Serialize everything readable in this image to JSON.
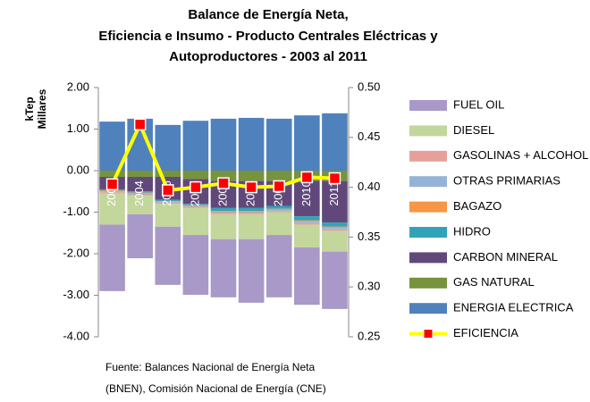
{
  "chart_data": {
    "type": "bar",
    "title": [
      "Balance de Energía Neta,",
      "Eficiencia e Insumo - Producto Centrales Eléctricas y",
      "Autoproductores - 2003 al 2011"
    ],
    "ylabel": [
      "kTep",
      "Millares"
    ],
    "source": [
      "Fuente: Balances Nacional de Energía Neta",
      "(BNEN), Comisión Nacional de Energía (CNE)"
    ],
    "categories": [
      "2003",
      "2004",
      "2005",
      "2006",
      "2007",
      "2008",
      "2009",
      "2010",
      "2011"
    ],
    "stacked": true,
    "series": [
      {
        "name": "FUEL OIL",
        "color": "#a899c8",
        "values": [
          -1.6,
          -1.06,
          -1.4,
          -1.44,
          -1.4,
          -1.53,
          -1.5,
          -1.38,
          -1.38
        ]
      },
      {
        "name": "DIESEL",
        "color": "#c3d69b",
        "values": [
          -0.75,
          -0.45,
          -0.55,
          -0.65,
          -0.6,
          -0.6,
          -0.55,
          -0.55,
          -0.5
        ]
      },
      {
        "name": "GASOLINAS + ALCOHOL",
        "color": "#e6a09b",
        "values": [
          -0.03,
          -0.03,
          -0.03,
          -0.03,
          -0.03,
          -0.03,
          -0.03,
          -0.04,
          -0.04
        ]
      },
      {
        "name": "OTRAS PRIMARIAS",
        "color": "#95b3d7",
        "values": [
          -0.02,
          -0.02,
          -0.02,
          -0.02,
          -0.02,
          -0.02,
          -0.02,
          -0.03,
          -0.03
        ]
      },
      {
        "name": "BAGAZO",
        "color": "#f79646",
        "values": [
          -0.02,
          -0.02,
          -0.02,
          -0.02,
          -0.03,
          -0.03,
          -0.03,
          -0.03,
          -0.03
        ]
      },
      {
        "name": "HIDRO",
        "color": "#31a3b8",
        "values": [
          -0.03,
          -0.03,
          -0.03,
          -0.03,
          -0.07,
          -0.07,
          -0.07,
          -0.1,
          -0.1
        ]
      },
      {
        "name": "CARBON MINERAL",
        "color": "#60497a",
        "values": [
          -0.3,
          -0.35,
          -0.55,
          -0.6,
          -0.65,
          -0.65,
          -0.6,
          -0.85,
          -1.0
        ]
      },
      {
        "name": "GAS NATURAL",
        "color": "#77933c",
        "values": [
          -0.15,
          -0.15,
          -0.15,
          -0.2,
          -0.25,
          -0.25,
          -0.25,
          -0.25,
          -0.25
        ]
      },
      {
        "name": "ENERGIA ELECTRICA",
        "color": "#4f81bd",
        "values": [
          1.18,
          1.25,
          1.1,
          1.2,
          1.25,
          1.27,
          1.25,
          1.33,
          1.38
        ]
      },
      {
        "name": "EFICIENCIA",
        "type": "line",
        "axis": "y2",
        "color": "#ffff00",
        "marker_color": "#ff0000",
        "values": [
          0.403,
          0.463,
          0.397,
          0.4,
          0.404,
          0.4,
          0.401,
          0.41,
          0.409
        ]
      }
    ],
    "ylim": [
      -4,
      2
    ],
    "yticks": [
      {
        "value": 2,
        "label": "2.00"
      },
      {
        "value": 1,
        "label": "1.00"
      },
      {
        "value": 0,
        "label": "0.00"
      },
      {
        "value": -1,
        "label": "-1.00"
      },
      {
        "value": -2,
        "label": "-2.00"
      },
      {
        "value": -3,
        "label": "-3.00"
      },
      {
        "value": -4,
        "label": "-4.00"
      }
    ],
    "y2lim": [
      0.25,
      0.5
    ],
    "y2ticks": [
      {
        "value": 0.5,
        "label": "0.50"
      },
      {
        "value": 0.45,
        "label": "0.45"
      },
      {
        "value": 0.4,
        "label": "0.40"
      },
      {
        "value": 0.35,
        "label": "0.35"
      },
      {
        "value": 0.3,
        "label": "0.30"
      },
      {
        "value": 0.25,
        "label": "0.25"
      }
    ],
    "legend": "right",
    "grid": false
  }
}
